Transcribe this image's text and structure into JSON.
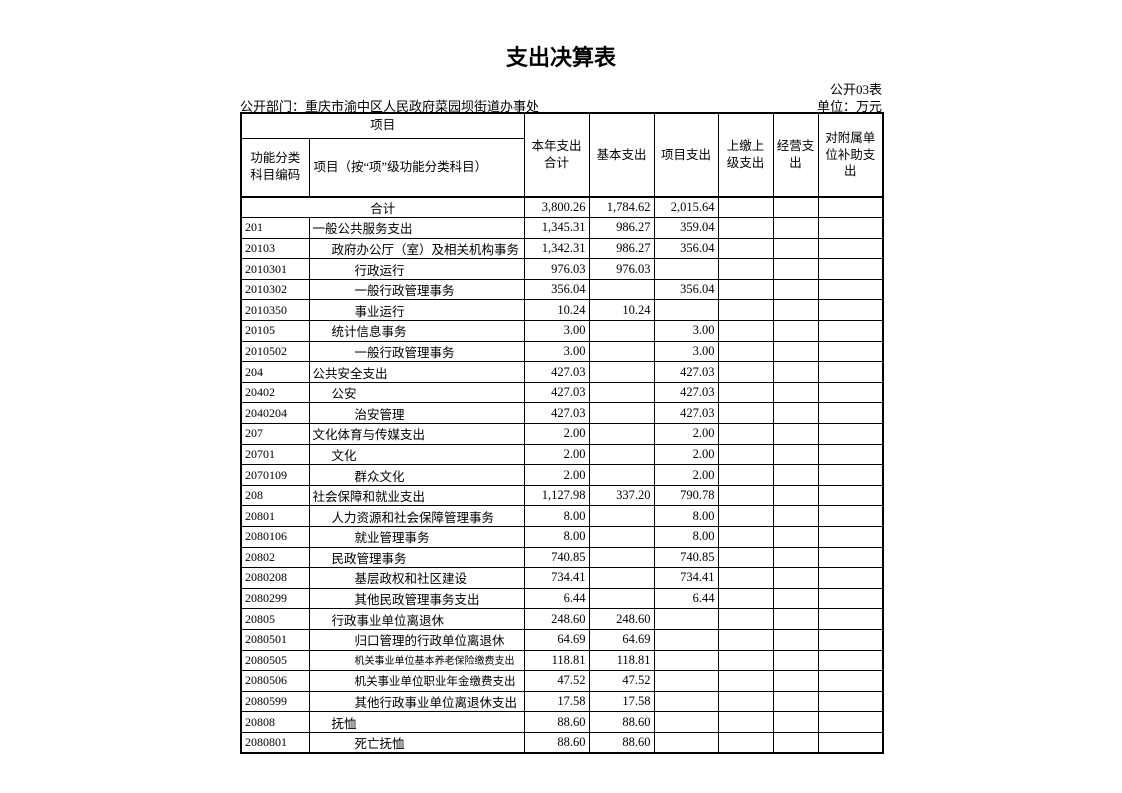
{
  "page": {
    "title": "支出决算表",
    "table_code": "公开03表",
    "department": "公开部门：重庆市渝中区人民政府菜园坝街道办事处",
    "unit": "单位：万元"
  },
  "table": {
    "header": {
      "project_group": "项目",
      "code_col": "功能分类科目编码",
      "name_col": "项目（按“项”级功能分类科目）",
      "cols": [
        "本年支出合计",
        "基本支出",
        "项目支出",
        "上缴上级支出",
        "经营支出",
        "对附属单位补助支出"
      ]
    },
    "rows": [
      {
        "code": "",
        "name": "合计",
        "level": 0,
        "v": [
          "3,800.26",
          "1,784.62",
          "2,015.64",
          "",
          "",
          ""
        ]
      },
      {
        "code": "201",
        "name": "一般公共服务支出",
        "level": 1,
        "v": [
          "1,345.31",
          "986.27",
          "359.04",
          "",
          "",
          ""
        ]
      },
      {
        "code": "20103",
        "name": "政府办公厅（室）及相关机构事务",
        "level": 2,
        "v": [
          "1,342.31",
          "986.27",
          "356.04",
          "",
          "",
          ""
        ]
      },
      {
        "code": "2010301",
        "name": "行政运行",
        "level": 3,
        "v": [
          "976.03",
          "976.03",
          "",
          "",
          "",
          ""
        ]
      },
      {
        "code": "2010302",
        "name": "一般行政管理事务",
        "level": 3,
        "v": [
          "356.04",
          "",
          "356.04",
          "",
          "",
          ""
        ]
      },
      {
        "code": "2010350",
        "name": "事业运行",
        "level": 3,
        "v": [
          "10.24",
          "10.24",
          "",
          "",
          "",
          ""
        ]
      },
      {
        "code": "20105",
        "name": "统计信息事务",
        "level": 2,
        "v": [
          "3.00",
          "",
          "3.00",
          "",
          "",
          ""
        ]
      },
      {
        "code": "2010502",
        "name": "一般行政管理事务",
        "level": 3,
        "v": [
          "3.00",
          "",
          "3.00",
          "",
          "",
          ""
        ]
      },
      {
        "code": "204",
        "name": "公共安全支出",
        "level": 1,
        "v": [
          "427.03",
          "",
          "427.03",
          "",
          "",
          ""
        ]
      },
      {
        "code": "20402",
        "name": "公安",
        "level": 2,
        "v": [
          "427.03",
          "",
          "427.03",
          "",
          "",
          ""
        ]
      },
      {
        "code": "2040204",
        "name": "治安管理",
        "level": 3,
        "v": [
          "427.03",
          "",
          "427.03",
          "",
          "",
          ""
        ]
      },
      {
        "code": "207",
        "name": "文化体育与传媒支出",
        "level": 1,
        "v": [
          "2.00",
          "",
          "2.00",
          "",
          "",
          ""
        ]
      },
      {
        "code": "20701",
        "name": "文化",
        "level": 2,
        "v": [
          "2.00",
          "",
          "2.00",
          "",
          "",
          ""
        ]
      },
      {
        "code": "2070109",
        "name": "群众文化",
        "level": 3,
        "v": [
          "2.00",
          "",
          "2.00",
          "",
          "",
          ""
        ]
      },
      {
        "code": "208",
        "name": "社会保障和就业支出",
        "level": 1,
        "v": [
          "1,127.98",
          "337.20",
          "790.78",
          "",
          "",
          ""
        ]
      },
      {
        "code": "20801",
        "name": "人力资源和社会保障管理事务",
        "level": 2,
        "v": [
          "8.00",
          "",
          "8.00",
          "",
          "",
          ""
        ]
      },
      {
        "code": "2080106",
        "name": "就业管理事务",
        "level": 3,
        "v": [
          "8.00",
          "",
          "8.00",
          "",
          "",
          ""
        ]
      },
      {
        "code": "20802",
        "name": "民政管理事务",
        "level": 2,
        "v": [
          "740.85",
          "",
          "740.85",
          "",
          "",
          ""
        ]
      },
      {
        "code": "2080208",
        "name": "基层政权和社区建设",
        "level": 3,
        "v": [
          "734.41",
          "",
          "734.41",
          "",
          "",
          ""
        ]
      },
      {
        "code": "2080299",
        "name": "其他民政管理事务支出",
        "level": 3,
        "v": [
          "6.44",
          "",
          "6.44",
          "",
          "",
          ""
        ]
      },
      {
        "code": "20805",
        "name": "行政事业单位离退休",
        "level": 2,
        "v": [
          "248.60",
          "248.60",
          "",
          "",
          "",
          ""
        ]
      },
      {
        "code": "2080501",
        "name": "归口管理的行政单位离退休",
        "level": 3,
        "v": [
          "64.69",
          "64.69",
          "",
          "",
          "",
          ""
        ]
      },
      {
        "code": "2080505",
        "name": "机关事业单位基本养老保险缴费支出",
        "level": 3,
        "v": [
          "118.81",
          "118.81",
          "",
          "",
          "",
          ""
        ]
      },
      {
        "code": "2080506",
        "name": "机关事业单位职业年金缴费支出",
        "level": 3,
        "v": [
          "47.52",
          "47.52",
          "",
          "",
          "",
          ""
        ]
      },
      {
        "code": "2080599",
        "name": "其他行政事业单位离退休支出",
        "level": 3,
        "v": [
          "17.58",
          "17.58",
          "",
          "",
          "",
          ""
        ]
      },
      {
        "code": "20808",
        "name": "抚恤",
        "level": 2,
        "v": [
          "88.60",
          "88.60",
          "",
          "",
          "",
          ""
        ]
      },
      {
        "code": "2080801",
        "name": "死亡抚恤",
        "level": 3,
        "v": [
          "88.60",
          "88.60",
          "",
          "",
          "",
          ""
        ]
      }
    ]
  }
}
